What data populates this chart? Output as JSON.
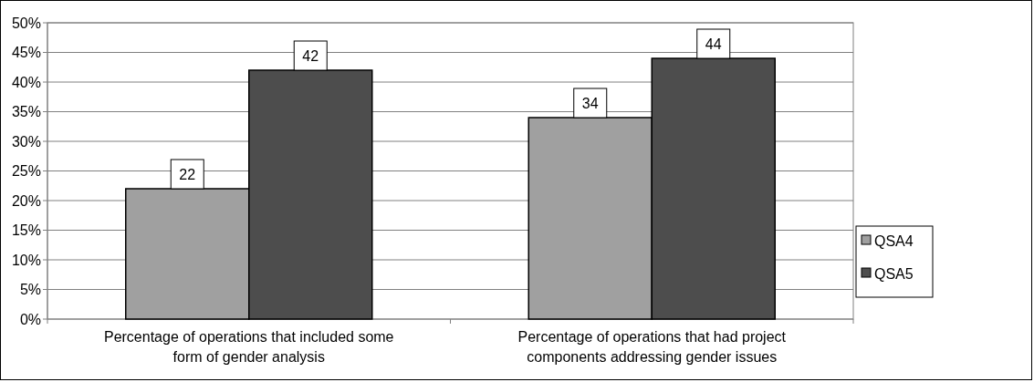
{
  "chart_data": {
    "type": "bar",
    "categories": [
      "Percentage of operations that included some form of gender analysis",
      "Percentage of operations that had project components addressing gender issues"
    ],
    "series": [
      {
        "name": "QSA4",
        "color": "#a0a0a0",
        "values": [
          22,
          34
        ]
      },
      {
        "name": "QSA5",
        "color": "#4d4d4d",
        "values": [
          42,
          44
        ]
      }
    ],
    "ylim": [
      0,
      50
    ],
    "yticks": [
      {
        "value": 0,
        "label": "0%"
      },
      {
        "value": 5,
        "label": "5%"
      },
      {
        "value": 10,
        "label": "10%"
      },
      {
        "value": 15,
        "label": "15%"
      },
      {
        "value": 20,
        "label": "20%"
      },
      {
        "value": 25,
        "label": "25%"
      },
      {
        "value": 30,
        "label": "30%"
      },
      {
        "value": 35,
        "label": "35%"
      },
      {
        "value": 40,
        "label": "40%"
      },
      {
        "value": 45,
        "label": "45%"
      },
      {
        "value": 50,
        "label": "50%"
      }
    ],
    "grid": true,
    "legend": "right",
    "data_labels": true
  }
}
